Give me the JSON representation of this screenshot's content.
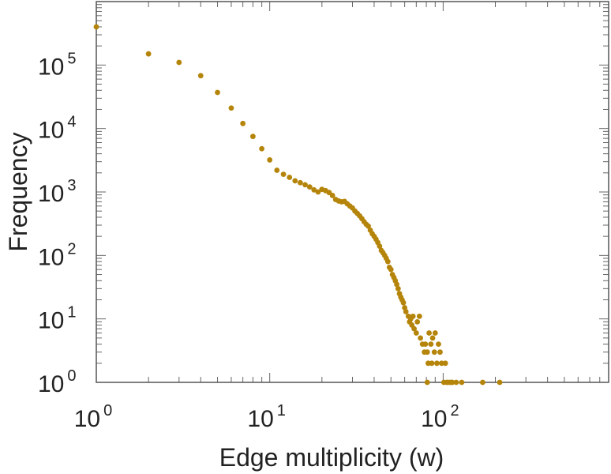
{
  "chart_data": {
    "type": "scatter",
    "x_scale": "log",
    "y_scale": "log",
    "xlim": [
      1,
      900
    ],
    "ylim": [
      1,
      1000000
    ],
    "xlabel": "Edge multiplicity (w)",
    "ylabel": "Frequency",
    "grid": false,
    "marker_color": "#b5850b",
    "x_ticks": [
      {
        "base": "10",
        "exp": "0",
        "value": 1
      },
      {
        "base": "10",
        "exp": "1",
        "value": 10
      },
      {
        "base": "10",
        "exp": "2",
        "value": 100
      }
    ],
    "y_ticks": [
      {
        "base": "10",
        "exp": "0",
        "value": 1
      },
      {
        "base": "10",
        "exp": "1",
        "value": 10
      },
      {
        "base": "10",
        "exp": "2",
        "value": 100
      },
      {
        "base": "10",
        "exp": "3",
        "value": 1000
      },
      {
        "base": "10",
        "exp": "4",
        "value": 10000
      },
      {
        "base": "10",
        "exp": "5",
        "value": 100000
      }
    ],
    "points": [
      [
        1,
        400000
      ],
      [
        2,
        150000
      ],
      [
        3,
        110000
      ],
      [
        4,
        68000
      ],
      [
        5,
        37000
      ],
      [
        6,
        21000
      ],
      [
        7,
        12000
      ],
      [
        8,
        7500
      ],
      [
        9,
        4800
      ],
      [
        10,
        3200
      ],
      [
        11,
        2200
      ],
      [
        12,
        1900
      ],
      [
        13,
        1700
      ],
      [
        14,
        1500
      ],
      [
        15,
        1400
      ],
      [
        16,
        1300
      ],
      [
        17,
        1200
      ],
      [
        18,
        1080
      ],
      [
        19,
        1000
      ],
      [
        20,
        1100
      ],
      [
        21,
        1050
      ],
      [
        22,
        980
      ],
      [
        23,
        880
      ],
      [
        24,
        760
      ],
      [
        25,
        720
      ],
      [
        26,
        700
      ],
      [
        27,
        710
      ],
      [
        28,
        650
      ],
      [
        29,
        600
      ],
      [
        30,
        560
      ],
      [
        31,
        500
      ],
      [
        32,
        460
      ],
      [
        33,
        420
      ],
      [
        34,
        380
      ],
      [
        35,
        340
      ],
      [
        36,
        310
      ],
      [
        37,
        290
      ],
      [
        38,
        250
      ],
      [
        39,
        220
      ],
      [
        40,
        200
      ],
      [
        41,
        180
      ],
      [
        42,
        160
      ],
      [
        43,
        140
      ],
      [
        44,
        120
      ],
      [
        45,
        110
      ],
      [
        46,
        100
      ],
      [
        47,
        90
      ],
      [
        48,
        80
      ],
      [
        49,
        65
      ],
      [
        50,
        60
      ],
      [
        51,
        50
      ],
      [
        52,
        45
      ],
      [
        53,
        40
      ],
      [
        54,
        35
      ],
      [
        55,
        30
      ],
      [
        56,
        25
      ],
      [
        57,
        22
      ],
      [
        58,
        20
      ],
      [
        59,
        18
      ],
      [
        60,
        15
      ],
      [
        61,
        13
      ],
      [
        63,
        11
      ],
      [
        64,
        9
      ],
      [
        65,
        10
      ],
      [
        66,
        8
      ],
      [
        67,
        11
      ],
      [
        68,
        7
      ],
      [
        70,
        6
      ],
      [
        71,
        9
      ],
      [
        73,
        11
      ],
      [
        74,
        5
      ],
      [
        76,
        4
      ],
      [
        78,
        3
      ],
      [
        79,
        4
      ],
      [
        81,
        3
      ],
      [
        82,
        2
      ],
      [
        83,
        6
      ],
      [
        85,
        4
      ],
      [
        86,
        2
      ],
      [
        87,
        5
      ],
      [
        89,
        3
      ],
      [
        90,
        6
      ],
      [
        92,
        2
      ],
      [
        94,
        4
      ],
      [
        96,
        3
      ],
      [
        98,
        2
      ],
      [
        101,
        1
      ],
      [
        81,
        1
      ],
      [
        103,
        2
      ],
      [
        105,
        1
      ],
      [
        107,
        1
      ],
      [
        110,
        1
      ],
      [
        112,
        1
      ],
      [
        113,
        1
      ],
      [
        119,
        1
      ],
      [
        128,
        1
      ],
      [
        169,
        1
      ],
      [
        212,
        1
      ]
    ]
  }
}
